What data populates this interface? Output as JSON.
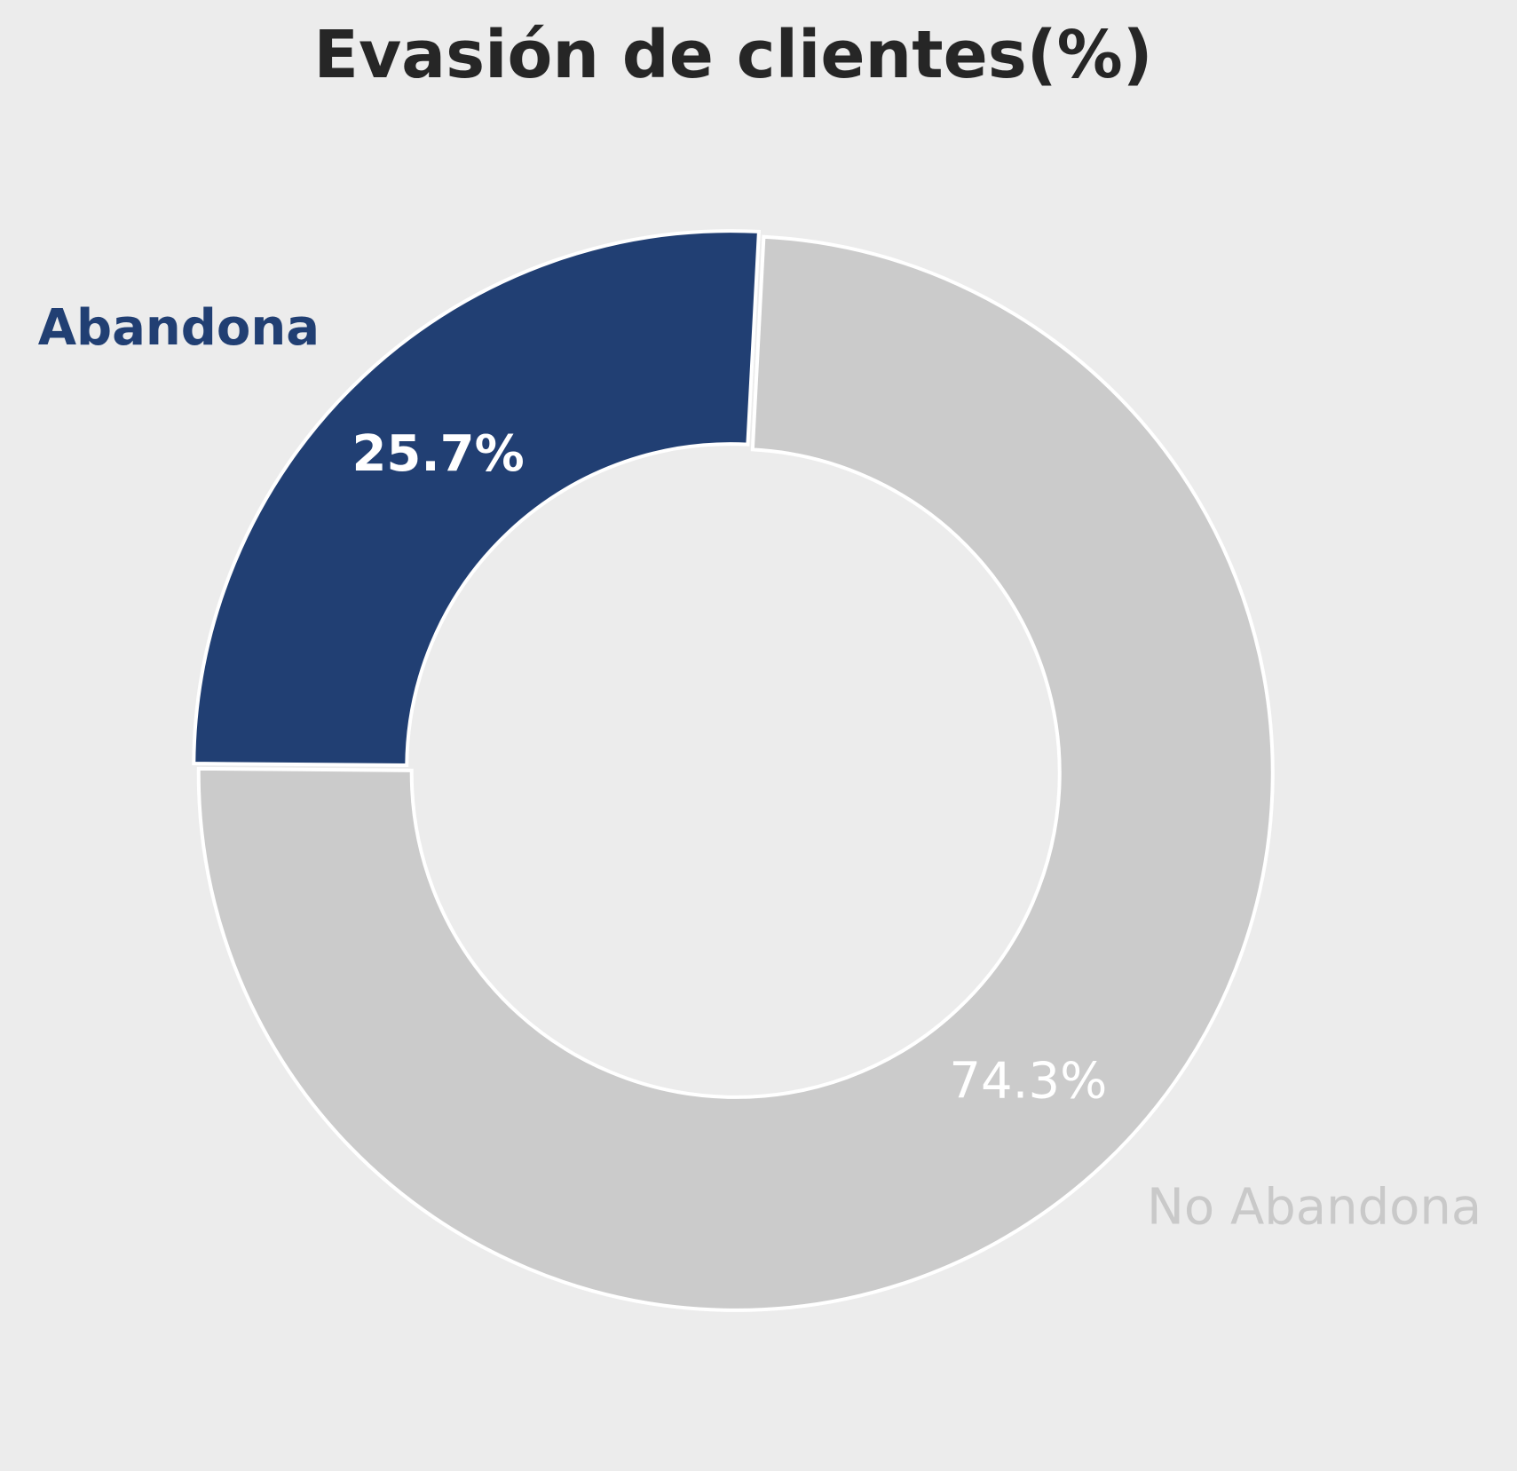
{
  "chart_data": {
    "type": "pie",
    "donut": true,
    "title": "Evasión de clientes(%)",
    "start_angle_deg": 87,
    "counterclockwise": true,
    "slices": [
      {
        "label": "Abandona",
        "value": 25.7,
        "value_label": "25.7%",
        "color": "#213f73",
        "label_color": "#213f73",
        "emphasis": "bold"
      },
      {
        "label": "No Abandona",
        "value": 74.3,
        "value_label": "74.3%",
        "color": "#cbcbcb",
        "label_color": "#c9c9c9",
        "emphasis": "normal"
      }
    ],
    "edge_color": "#ffffff",
    "background": "#ececec"
  }
}
